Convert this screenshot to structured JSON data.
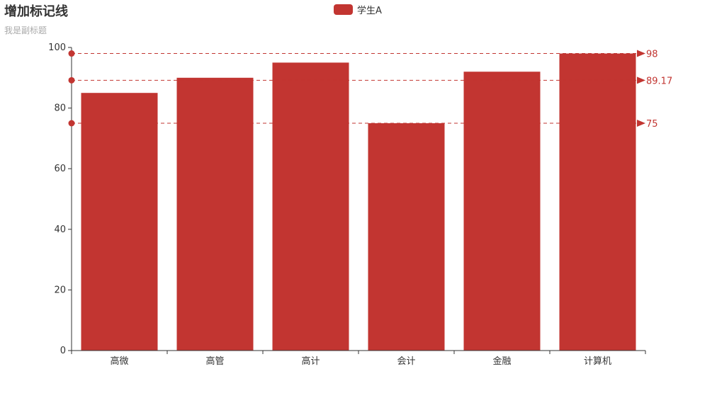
{
  "chart_data": {
    "type": "bar",
    "title": "增加标记线",
    "subtitle": "我是副标题",
    "categories": [
      "高微",
      "高管",
      "高计",
      "会计",
      "金融",
      "计算机"
    ],
    "series": [
      {
        "name": "学生A",
        "values": [
          85,
          90,
          95,
          75,
          92,
          98
        ],
        "color": "#c23531"
      }
    ],
    "ylim": [
      0,
      100
    ],
    "yticks": [
      0,
      20,
      40,
      60,
      80,
      100
    ],
    "legend_position": "top-center",
    "grid": false,
    "mark_lines": [
      {
        "type": "max",
        "value": 98,
        "label": "98"
      },
      {
        "type": "average",
        "value": 89.17,
        "label": "89.17"
      },
      {
        "type": "min",
        "value": 75,
        "label": "75"
      }
    ]
  }
}
